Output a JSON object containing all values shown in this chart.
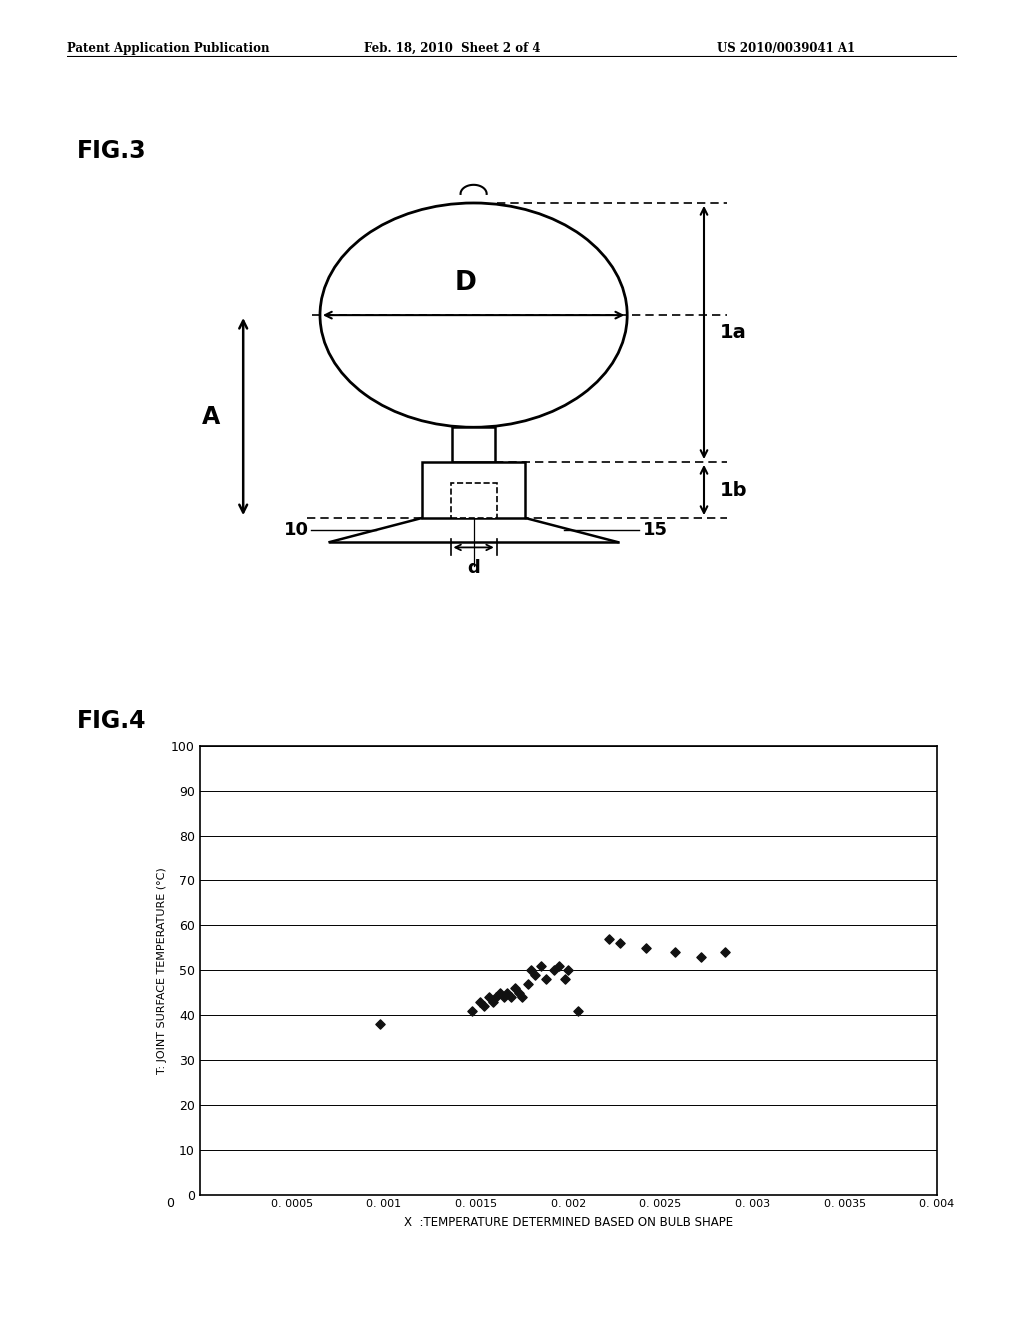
{
  "header_left": "Patent Application Publication",
  "header_mid": "Feb. 18, 2010  Sheet 2 of 4",
  "header_right": "US 2010/0039041 A1",
  "fig3_label": "FIG.3",
  "fig4_label": "FIG.4",
  "scatter_x": [
    0.00098,
    0.00148,
    0.00152,
    0.00154,
    0.00157,
    0.00159,
    0.00161,
    0.00163,
    0.00165,
    0.00167,
    0.00169,
    0.00171,
    0.00173,
    0.00175,
    0.00178,
    0.0018,
    0.00182,
    0.00185,
    0.00188,
    0.00192,
    0.00195,
    0.00198,
    0.002,
    0.00205,
    0.00222,
    0.00228,
    0.00242,
    0.00258,
    0.00272,
    0.00285
  ],
  "scatter_y": [
    38,
    41,
    43,
    42,
    44,
    43,
    44,
    45,
    44,
    45,
    44,
    46,
    45,
    44,
    47,
    50,
    49,
    51,
    48,
    50,
    51,
    48,
    50,
    41,
    57,
    56,
    55,
    54,
    53,
    54
  ],
  "xlabel": "X  :TEMPERATURE DETERMINED BASED ON BULB SHAPE",
  "ylabel": "T: JOINT SURFACE TEMPERATURE (°C)",
  "xlim": [
    0,
    0.004
  ],
  "ylim": [
    0,
    100
  ],
  "yticks": [
    0,
    10,
    20,
    30,
    40,
    50,
    60,
    70,
    80,
    90,
    100
  ],
  "xticks": [
    0,
    0.0005,
    0.001,
    0.0015,
    0.002,
    0.0025,
    0.003,
    0.0035,
    0.004
  ],
  "xtick_labels": [
    "0",
    "0. 0005",
    "0. 001",
    "0. 0015",
    "0. 002",
    "0. 0025",
    "0. 003",
    "0. 0035",
    "0. 004"
  ],
  "bg_color": "#ffffff",
  "marker_color": "#111111",
  "grid_color": "#000000"
}
